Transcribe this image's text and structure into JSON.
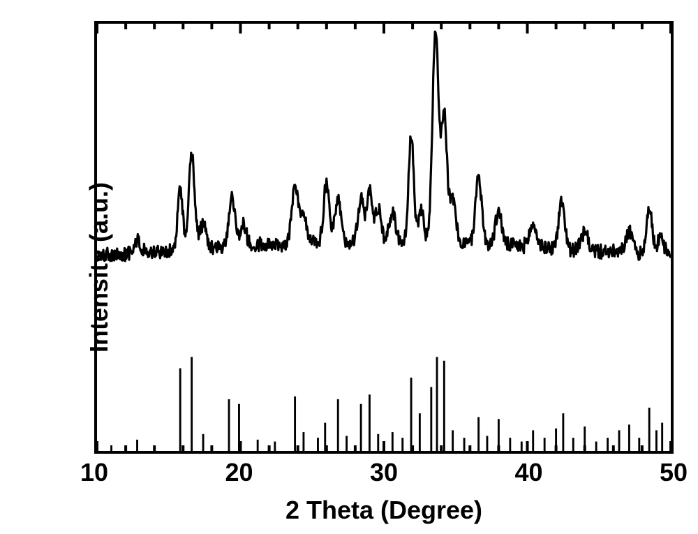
{
  "chart": {
    "type": "line",
    "xlabel": "2 Theta (Degree)",
    "ylabel": "Intensity (a.u.)",
    "xlim": [
      10,
      50
    ],
    "ylim": [
      0,
      100
    ],
    "xtick_major": [
      10,
      20,
      30,
      40,
      50
    ],
    "xtick_minor_step": 2,
    "colors": {
      "line": "#000000",
      "bars": "#000000",
      "background": "#ffffff",
      "axis": "#000000"
    },
    "axis_linewidth": 4,
    "major_tick_len_in": 14,
    "minor_tick_len_in": 8,
    "label_fontsize": 36,
    "tick_fontsize": 36,
    "font_weight": 900,
    "xrd_trace": {
      "linewidth": 3.2,
      "baseline_y": 42,
      "noise_amp": 1.6,
      "background_hump": {
        "center": 30,
        "width": 24,
        "height": 7
      },
      "peaks": [
        {
          "x": 12.8,
          "h": 3,
          "w": 0.35
        },
        {
          "x": 15.8,
          "h": 14,
          "w": 0.25
        },
        {
          "x": 16.6,
          "h": 22,
          "w": 0.3
        },
        {
          "x": 17.4,
          "h": 6,
          "w": 0.3
        },
        {
          "x": 19.4,
          "h": 12,
          "w": 0.3
        },
        {
          "x": 20.2,
          "h": 5,
          "w": 0.3
        },
        {
          "x": 23.8,
          "h": 14,
          "w": 0.3
        },
        {
          "x": 24.4,
          "h": 6,
          "w": 0.3
        },
        {
          "x": 26.0,
          "h": 14,
          "w": 0.28
        },
        {
          "x": 26.8,
          "h": 10,
          "w": 0.28
        },
        {
          "x": 28.4,
          "h": 10,
          "w": 0.3
        },
        {
          "x": 29.0,
          "h": 12,
          "w": 0.25
        },
        {
          "x": 29.6,
          "h": 8,
          "w": 0.3
        },
        {
          "x": 30.6,
          "h": 7,
          "w": 0.3
        },
        {
          "x": 31.9,
          "h": 25,
          "w": 0.25
        },
        {
          "x": 32.6,
          "h": 8,
          "w": 0.25
        },
        {
          "x": 33.6,
          "h": 50,
          "w": 0.3
        },
        {
          "x": 34.2,
          "h": 30,
          "w": 0.28
        },
        {
          "x": 34.8,
          "h": 10,
          "w": 0.3
        },
        {
          "x": 36.6,
          "h": 16,
          "w": 0.3
        },
        {
          "x": 38.0,
          "h": 8,
          "w": 0.3
        },
        {
          "x": 40.4,
          "h": 5,
          "w": 0.35
        },
        {
          "x": 42.4,
          "h": 11,
          "w": 0.3
        },
        {
          "x": 44.0,
          "h": 4,
          "w": 0.35
        },
        {
          "x": 47.1,
          "h": 5,
          "w": 0.35
        },
        {
          "x": 48.5,
          "h": 11,
          "w": 0.28
        },
        {
          "x": 49.3,
          "h": 5,
          "w": 0.3
        }
      ]
    },
    "reference_sticks": {
      "bar_width": 0.14,
      "max_height_frac": 0.22,
      "peaks": [
        {
          "x": 11.0,
          "h": 6
        },
        {
          "x": 12.8,
          "h": 12
        },
        {
          "x": 15.8,
          "h": 88
        },
        {
          "x": 16.6,
          "h": 100
        },
        {
          "x": 17.4,
          "h": 18
        },
        {
          "x": 19.2,
          "h": 55
        },
        {
          "x": 19.9,
          "h": 50
        },
        {
          "x": 21.2,
          "h": 12
        },
        {
          "x": 22.4,
          "h": 10
        },
        {
          "x": 23.8,
          "h": 58
        },
        {
          "x": 24.4,
          "h": 20
        },
        {
          "x": 25.4,
          "h": 14
        },
        {
          "x": 25.9,
          "h": 30
        },
        {
          "x": 26.8,
          "h": 55
        },
        {
          "x": 27.4,
          "h": 16
        },
        {
          "x": 28.4,
          "h": 50
        },
        {
          "x": 29.0,
          "h": 60
        },
        {
          "x": 29.6,
          "h": 18
        },
        {
          "x": 30.6,
          "h": 20
        },
        {
          "x": 31.3,
          "h": 14
        },
        {
          "x": 31.9,
          "h": 78
        },
        {
          "x": 32.5,
          "h": 40
        },
        {
          "x": 33.3,
          "h": 68
        },
        {
          "x": 33.7,
          "h": 100
        },
        {
          "x": 34.2,
          "h": 96
        },
        {
          "x": 34.8,
          "h": 22
        },
        {
          "x": 35.6,
          "h": 14
        },
        {
          "x": 36.6,
          "h": 36
        },
        {
          "x": 37.2,
          "h": 16
        },
        {
          "x": 38.0,
          "h": 34
        },
        {
          "x": 38.8,
          "h": 14
        },
        {
          "x": 39.6,
          "h": 10
        },
        {
          "x": 40.4,
          "h": 22
        },
        {
          "x": 41.2,
          "h": 14
        },
        {
          "x": 42.0,
          "h": 24
        },
        {
          "x": 42.5,
          "h": 40
        },
        {
          "x": 43.2,
          "h": 14
        },
        {
          "x": 44.0,
          "h": 26
        },
        {
          "x": 44.8,
          "h": 10
        },
        {
          "x": 45.6,
          "h": 14
        },
        {
          "x": 46.4,
          "h": 22
        },
        {
          "x": 47.1,
          "h": 28
        },
        {
          "x": 47.8,
          "h": 14
        },
        {
          "x": 48.5,
          "h": 46
        },
        {
          "x": 49.0,
          "h": 22
        },
        {
          "x": 49.4,
          "h": 30
        }
      ]
    }
  }
}
